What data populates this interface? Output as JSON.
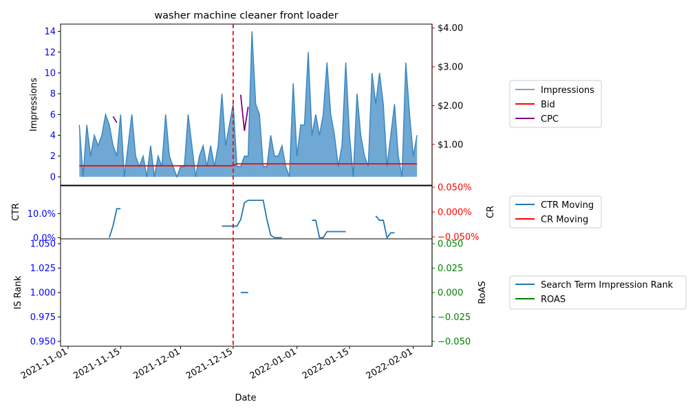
{
  "chart_data": {
    "type": "line",
    "title": "washer machine cleaner front loader",
    "xlabel": "Date",
    "x_ticks": [
      "2021-11-01",
      "2021-11-15",
      "2021-12-01",
      "2021-12-15",
      "2022-01-01",
      "2022-01-15",
      "2022-02-01"
    ],
    "x_range": [
      "2021-10-30",
      "2022-02-06"
    ],
    "marker_date": "2021-12-15",
    "marker_color": "#ff0000",
    "colors": {
      "impressions_fill": "#6fa8d3",
      "impressions_line": "#3a87c0",
      "bid": "#ff0000",
      "cpc": "#800080",
      "ctr": "#1f77b4",
      "roas": "#008000",
      "left_tick": "#0000ff",
      "right_tick_top": "#ff0000",
      "right_tick_bottom": "#008000"
    },
    "top": {
      "ylabel": "Impressions",
      "ylim": [
        -0.8,
        14.7
      ],
      "yticks": [
        "0",
        "2",
        "4",
        "6",
        "8",
        "10",
        "12",
        "14"
      ],
      "y2lim": [
        -0.05,
        4.1
      ],
      "y2ticks": [
        "$1.00",
        "$2.00",
        "$3.00",
        "$4.00"
      ],
      "legend": [
        "Impressions",
        "Bid",
        "CPC"
      ],
      "impressions": [
        [
          "2021-11-04",
          5
        ],
        [
          "2021-11-05",
          0
        ],
        [
          "2021-11-06",
          5
        ],
        [
          "2021-11-07",
          2
        ],
        [
          "2021-11-08",
          4
        ],
        [
          "2021-11-09",
          3
        ],
        [
          "2021-11-10",
          4
        ],
        [
          "2021-11-11",
          6
        ],
        [
          "2021-11-12",
          5
        ],
        [
          "2021-11-13",
          3
        ],
        [
          "2021-11-14",
          2
        ],
        [
          "2021-11-15",
          6
        ],
        [
          "2021-11-16",
          0
        ],
        [
          "2021-11-17",
          3
        ],
        [
          "2021-11-18",
          6
        ],
        [
          "2021-11-19",
          2
        ],
        [
          "2021-11-20",
          1
        ],
        [
          "2021-11-21",
          2
        ],
        [
          "2021-11-22",
          0
        ],
        [
          "2021-11-23",
          3
        ],
        [
          "2021-11-24",
          0
        ],
        [
          "2021-11-25",
          2
        ],
        [
          "2021-11-26",
          1
        ],
        [
          "2021-11-27",
          6
        ],
        [
          "2021-11-28",
          2
        ],
        [
          "2021-11-29",
          1
        ],
        [
          "2021-11-30",
          0
        ],
        [
          "2021-12-01",
          1
        ],
        [
          "2021-12-02",
          1
        ],
        [
          "2021-12-03",
          6
        ],
        [
          "2021-12-04",
          3
        ],
        [
          "2021-12-05",
          0
        ],
        [
          "2021-12-06",
          2
        ],
        [
          "2021-12-07",
          3
        ],
        [
          "2021-12-08",
          1
        ],
        [
          "2021-12-09",
          3
        ],
        [
          "2021-12-10",
          1
        ],
        [
          "2021-12-11",
          3
        ],
        [
          "2021-12-12",
          8
        ],
        [
          "2021-12-13",
          3
        ],
        [
          "2021-12-14",
          5
        ],
        [
          "2021-12-15",
          7
        ],
        [
          "2021-12-16",
          1
        ],
        [
          "2021-12-17",
          1
        ],
        [
          "2021-12-18",
          2
        ],
        [
          "2021-12-19",
          2
        ],
        [
          "2021-12-20",
          14
        ],
        [
          "2021-12-21",
          7
        ],
        [
          "2021-12-22",
          6
        ],
        [
          "2021-12-23",
          1
        ],
        [
          "2021-12-24",
          1
        ],
        [
          "2021-12-25",
          4
        ],
        [
          "2021-12-26",
          2
        ],
        [
          "2021-12-27",
          2
        ],
        [
          "2021-12-28",
          3
        ],
        [
          "2021-12-29",
          1
        ],
        [
          "2021-12-30",
          0
        ],
        [
          "2021-12-31",
          9
        ],
        [
          "2022-01-01",
          2
        ],
        [
          "2022-01-02",
          5
        ],
        [
          "2022-01-03",
          5
        ],
        [
          "2022-01-04",
          12
        ],
        [
          "2022-01-05",
          4
        ],
        [
          "2022-01-06",
          6
        ],
        [
          "2022-01-07",
          4
        ],
        [
          "2022-01-08",
          6
        ],
        [
          "2022-01-09",
          11
        ],
        [
          "2022-01-10",
          6
        ],
        [
          "2022-01-11",
          4
        ],
        [
          "2022-01-12",
          1
        ],
        [
          "2022-01-13",
          3
        ],
        [
          "2022-01-14",
          11
        ],
        [
          "2022-01-15",
          4
        ],
        [
          "2022-01-16",
          0
        ],
        [
          "2022-01-17",
          8
        ],
        [
          "2022-01-18",
          4
        ],
        [
          "2022-01-19",
          2
        ],
        [
          "2022-01-20",
          1
        ],
        [
          "2022-01-21",
          10
        ],
        [
          "2022-01-22",
          7
        ],
        [
          "2022-01-23",
          10
        ],
        [
          "2022-01-24",
          7
        ],
        [
          "2022-01-25",
          1
        ],
        [
          "2022-01-26",
          4
        ],
        [
          "2022-01-27",
          7
        ],
        [
          "2022-01-28",
          2
        ],
        [
          "2022-01-29",
          0
        ],
        [
          "2022-01-30",
          11
        ],
        [
          "2022-01-31",
          6
        ],
        [
          "2022-02-01",
          2
        ],
        [
          "2022-02-02",
          4
        ]
      ],
      "bid": [
        [
          "2021-11-04",
          0.45
        ],
        [
          "2021-12-15",
          0.45
        ],
        [
          "2021-12-16",
          0.5
        ],
        [
          "2022-02-02",
          0.5
        ]
      ],
      "cpc": [
        [
          [
            "2021-11-13",
            1.72
          ],
          [
            "2021-11-14",
            1.56
          ]
        ],
        [
          [
            "2021-12-17",
            2.28
          ],
          [
            "2021-12-18",
            1.35
          ],
          [
            "2021-12-19",
            1.97
          ]
        ]
      ]
    },
    "middle": {
      "ylabel": "CTR",
      "ylim": [
        -0.005,
        0.215
      ],
      "yticks": [
        "0.0%",
        "10.0%"
      ],
      "y2label": "CR",
      "y2ticks": [
        "-0.050%",
        "0.000%",
        "0.050%"
      ],
      "legend": [
        "CTR Moving",
        "CR Moving"
      ],
      "ctr_segments": [
        [
          [
            "2021-11-12",
            0.0
          ],
          [
            "2021-11-13",
            0.05
          ],
          [
            "2021-11-14",
            0.12
          ],
          [
            "2021-11-15",
            0.12
          ]
        ],
        [
          [
            "2021-12-12",
            0.048
          ],
          [
            "2021-12-16",
            0.048
          ],
          [
            "2021-12-17",
            0.075
          ],
          [
            "2021-12-18",
            0.145
          ],
          [
            "2021-12-19",
            0.155
          ],
          [
            "2021-12-23",
            0.155
          ],
          [
            "2021-12-24",
            0.075
          ],
          [
            "2021-12-25",
            0.01
          ],
          [
            "2021-12-26",
            0.0
          ],
          [
            "2021-12-28",
            0.0
          ]
        ],
        [
          [
            "2022-01-05",
            0.072
          ],
          [
            "2022-01-06",
            0.072
          ],
          [
            "2022-01-07",
            0.0
          ],
          [
            "2022-01-08",
            0.0
          ],
          [
            "2022-01-09",
            0.025
          ],
          [
            "2022-01-14",
            0.025
          ]
        ],
        [
          [
            "2022-01-22",
            0.09
          ],
          [
            "2022-01-23",
            0.072
          ],
          [
            "2022-01-24",
            0.072
          ],
          [
            "2022-01-25",
            0.0
          ],
          [
            "2022-01-26",
            0.02
          ],
          [
            "2022-01-27",
            0.02
          ]
        ]
      ]
    },
    "bottom": {
      "ylabel": "IS Rank",
      "ylim": [
        0.945,
        1.055
      ],
      "yticks": [
        "0.950",
        "0.975",
        "1.000",
        "1.025",
        "1.050"
      ],
      "y2label": "RoAS",
      "y2ticks": [
        "-0.050",
        "-0.025",
        "0.000",
        "0.025",
        "0.050"
      ],
      "legend": [
        "Search Term Impression Rank",
        "ROAS"
      ],
      "is_rank": [
        [
          "2021-12-17",
          1.0
        ],
        [
          "2021-12-19",
          1.0
        ]
      ]
    }
  }
}
